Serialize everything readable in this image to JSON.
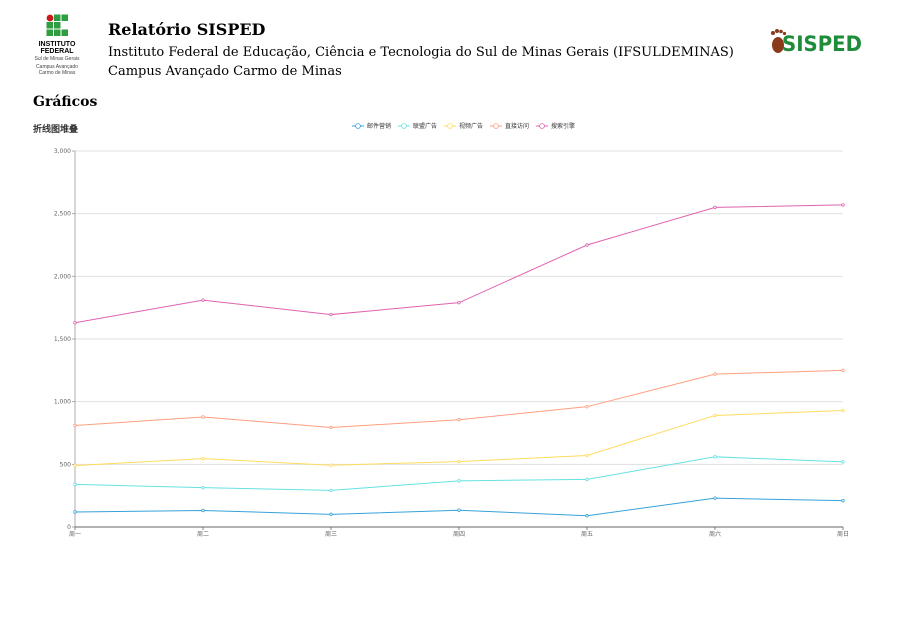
{
  "header": {
    "logo_text": "INSTITUTO FEDERAL",
    "logo_campus_name": "Sul de Minas Gerais",
    "logo_campus_sub": "Campus Avançado Carmo de Minas",
    "title": "Relatório SISPED",
    "institution": "Instituto Federal de Educação, Ciência e Tecnologia do Sul de Minas Gerais (IFSULDEMINAS)",
    "campus": "Campus Avançado Carmo de Minas",
    "app_logo_text": "SISPED"
  },
  "section_title": "Gráficos",
  "colors": {
    "logo_green": "#2f9e41",
    "logo_red": "#cd191e",
    "app_logo_green": "#1e8c3a",
    "app_logo_brown": "#8b3a1a"
  },
  "chart_data": {
    "type": "line",
    "title": "折线图堆叠",
    "categories": [
      "周一",
      "周二",
      "周三",
      "周四",
      "周五",
      "周六",
      "周日"
    ],
    "ylim": [
      0,
      3000
    ],
    "yticks": [
      "0",
      "500",
      "1,000",
      "1,500",
      "2,000",
      "2,500",
      "3,000"
    ],
    "stacked": true,
    "grid": true,
    "legend_position": "top-center",
    "series": [
      {
        "name": "邮件营销",
        "color": "#37a2da",
        "values": [
          120,
          132,
          101,
          134,
          90,
          230,
          210
        ]
      },
      {
        "name": "联盟广告",
        "color": "#67e0e3",
        "values": [
          220,
          182,
          191,
          234,
          290,
          330,
          310
        ]
      },
      {
        "name": "视频广告",
        "color": "#ffdb5c",
        "values": [
          150,
          232,
          201,
          154,
          190,
          330,
          410
        ]
      },
      {
        "name": "直接访问",
        "color": "#ff9f7f",
        "values": [
          320,
          332,
          301,
          334,
          390,
          330,
          320
        ]
      },
      {
        "name": "搜索引擎",
        "color": "#e062ae",
        "values": [
          820,
          932,
          901,
          934,
          1290,
          1330,
          1320
        ]
      }
    ]
  }
}
